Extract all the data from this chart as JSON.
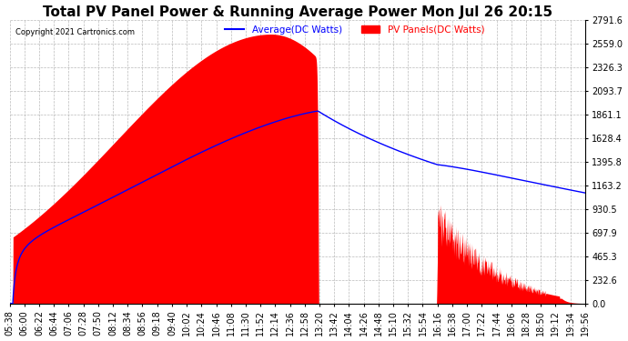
{
  "title": "Total PV Panel Power & Running Average Power Mon Jul 26 20:15",
  "copyright": "Copyright 2021 Cartronics.com",
  "legend_avg": "Average(DC Watts)",
  "legend_pv": "PV Panels(DC Watts)",
  "y_max": 2791.6,
  "y_min": 0.0,
  "y_ticks": [
    0.0,
    232.6,
    465.3,
    697.9,
    930.5,
    1163.2,
    1395.8,
    1628.4,
    1861.1,
    2093.7,
    2326.3,
    2559.0,
    2791.6
  ],
  "x_labels": [
    "05:38",
    "06:00",
    "06:22",
    "06:44",
    "07:06",
    "07:28",
    "07:50",
    "08:12",
    "08:34",
    "08:56",
    "09:18",
    "09:40",
    "10:02",
    "10:24",
    "10:46",
    "11:08",
    "11:30",
    "11:52",
    "12:14",
    "12:36",
    "12:58",
    "13:20",
    "13:42",
    "14:04",
    "14:26",
    "14:48",
    "15:10",
    "15:32",
    "15:54",
    "16:16",
    "16:38",
    "17:00",
    "17:22",
    "17:44",
    "18:06",
    "18:28",
    "18:50",
    "19:12",
    "19:34",
    "19:56"
  ],
  "pv_color": "#FF0000",
  "avg_color": "#0000FF",
  "background_color": "#FFFFFF",
  "grid_color": "#AAAAAA",
  "title_fontsize": 11,
  "tick_fontsize": 7.0
}
